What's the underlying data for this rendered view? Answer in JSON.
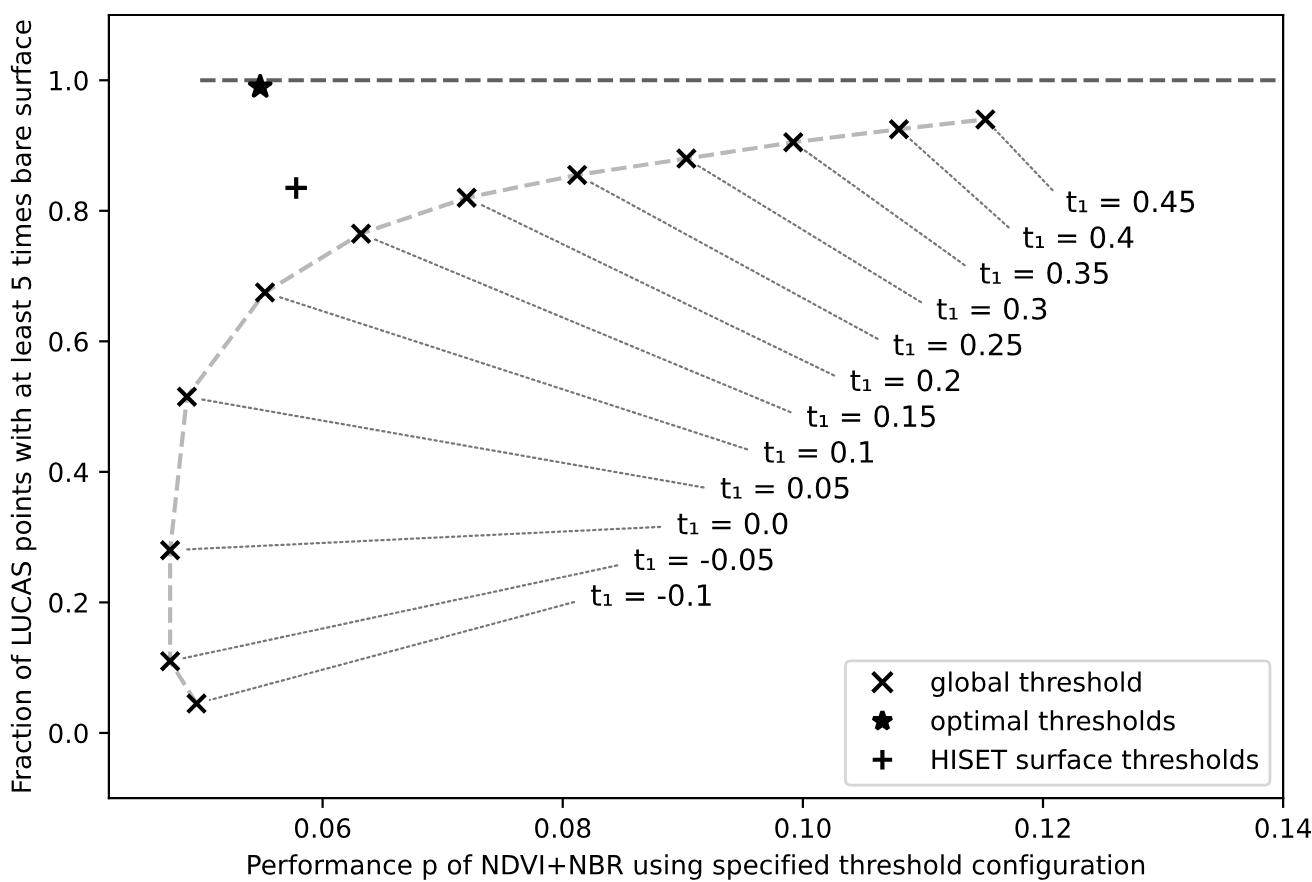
{
  "chart_data": {
    "type": "scatter",
    "xlabel": "Performance p of NDVI+NBR using specified threshold configuration",
    "ylabel": "Fraction of LUCAS points with at least 5 times bare surface",
    "xlim": [
      0.0422,
      0.14
    ],
    "ylim": [
      -0.1,
      1.1
    ],
    "xticks": [
      {
        "value": 0.06,
        "label": "0.06"
      },
      {
        "value": 0.08,
        "label": "0.08"
      },
      {
        "value": 0.1,
        "label": "0.10"
      },
      {
        "value": 0.12,
        "label": "0.12"
      },
      {
        "value": 0.14,
        "label": "0.14"
      }
    ],
    "yticks": [
      {
        "value": 0,
        "label": "0.0"
      },
      {
        "value": 0.2,
        "label": "0.2"
      },
      {
        "value": 0.4,
        "label": "0.4"
      },
      {
        "value": 0.6,
        "label": "0.6"
      },
      {
        "value": 0.8,
        "label": "0.8"
      },
      {
        "value": 1,
        "label": "1.0"
      }
    ],
    "grid": false,
    "legend": "bottom right",
    "series": [
      {
        "type": "line",
        "color": "#606060",
        "line_style": "dashed",
        "marker": "none",
        "x": [
          0.0498,
          0.14
        ],
        "values": [
          1.0,
          1.0
        ]
      },
      {
        "type": "line",
        "color": "#b8b8b8",
        "line_style": "dashed",
        "marker": "none",
        "x": [
          0.0495,
          0.0473,
          0.0473,
          0.0487,
          0.0552,
          0.0632,
          0.072,
          0.0812,
          0.0903,
          0.0992,
          0.108,
          0.1152
        ],
        "values": [
          0.045,
          0.11,
          0.28,
          0.515,
          0.675,
          0.765,
          0.82,
          0.855,
          0.88,
          0.905,
          0.925,
          0.94
        ]
      },
      {
        "name": "global threshold",
        "color": "#000000",
        "marker": "cross",
        "x": [
          0.0495,
          0.0473,
          0.0473,
          0.0487,
          0.0552,
          0.0632,
          0.072,
          0.0812,
          0.0903,
          0.0992,
          0.108,
          0.1152
        ],
        "values": [
          0.045,
          0.11,
          0.28,
          0.515,
          0.675,
          0.765,
          0.82,
          0.855,
          0.88,
          0.905,
          0.925,
          0.94
        ]
      },
      {
        "name": "optimal thresholds",
        "color": "#000000",
        "marker": "star",
        "x": [
          0.0548
        ],
        "values": [
          0.99
        ]
      },
      {
        "name": "HISET surface thresholds",
        "color": "#000000",
        "marker": "plus",
        "x": [
          0.0578
        ],
        "values": [
          0.835
        ]
      }
    ],
    "annotations": [
      {
        "text": "t₁ = -0.1",
        "x": 0.0495,
        "y": 0.045
      },
      {
        "text": "t₁ = -0.05",
        "x": 0.0473,
        "y": 0.11
      },
      {
        "text": "t₁ = 0.0",
        "x": 0.0473,
        "y": 0.28
      },
      {
        "text": "t₁ = 0.05",
        "x": 0.0487,
        "y": 0.515
      },
      {
        "text": "t₁ = 0.1",
        "x": 0.0552,
        "y": 0.675
      },
      {
        "text": "t₁ = 0.15",
        "x": 0.0632,
        "y": 0.765
      },
      {
        "text": "t₁ = 0.2",
        "x": 0.072,
        "y": 0.82
      },
      {
        "text": "t₁ = 0.25",
        "x": 0.0812,
        "y": 0.855
      },
      {
        "text": "t₁ = 0.3",
        "x": 0.0903,
        "y": 0.88
      },
      {
        "text": "t₁ = 0.35",
        "x": 0.0992,
        "y": 0.905
      },
      {
        "text": "t₁ = 0.4",
        "x": 0.108,
        "y": 0.925
      },
      {
        "text": "t₁ = 0.45",
        "x": 0.1152,
        "y": 0.94
      }
    ]
  }
}
